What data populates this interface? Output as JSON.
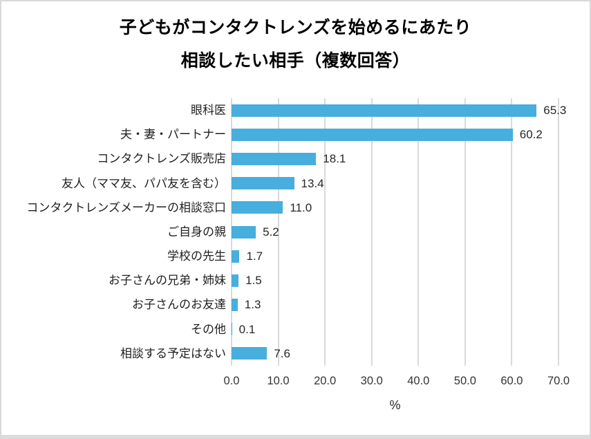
{
  "chart_data": {
    "type": "bar",
    "orientation": "horizontal",
    "title_lines": [
      "子どもがコンタクトレンズを始めるにあたり",
      "相談したい相手（複数回答）"
    ],
    "categories": [
      "眼科医",
      "夫・妻・パートナー",
      "コンタクトレンズ販売店",
      "友人（ママ友、パパ友を含む）",
      "コンタクトレンズメーカーの相談窓口",
      "ご自身の親",
      "学校の先生",
      "お子さんの兄弟・姉妹",
      "お子さんのお友達",
      "その他",
      "相談する予定はない"
    ],
    "values": [
      65.3,
      60.2,
      18.1,
      13.4,
      11.0,
      5.2,
      1.7,
      1.5,
      1.3,
      0.1,
      7.6
    ],
    "value_labels": [
      "65.3",
      "60.2",
      "18.1",
      "13.4",
      "11.0",
      "5.2",
      "1.7",
      "1.5",
      "1.3",
      "0.1",
      "7.6"
    ],
    "xlabel": "%",
    "xlim": [
      0,
      70
    ],
    "xtick_step": 10,
    "xticks": [
      "0.0",
      "10.0",
      "20.0",
      "30.0",
      "40.0",
      "50.0",
      "60.0",
      "70.0"
    ],
    "grid": true,
    "legend": false,
    "bar_color": "#47AEDD",
    "gridline_color": "#D9D9D9",
    "title_color": "#000000",
    "label_color": "#1F1F1F",
    "value_color": "#262626",
    "tick_color": "#333333"
  }
}
